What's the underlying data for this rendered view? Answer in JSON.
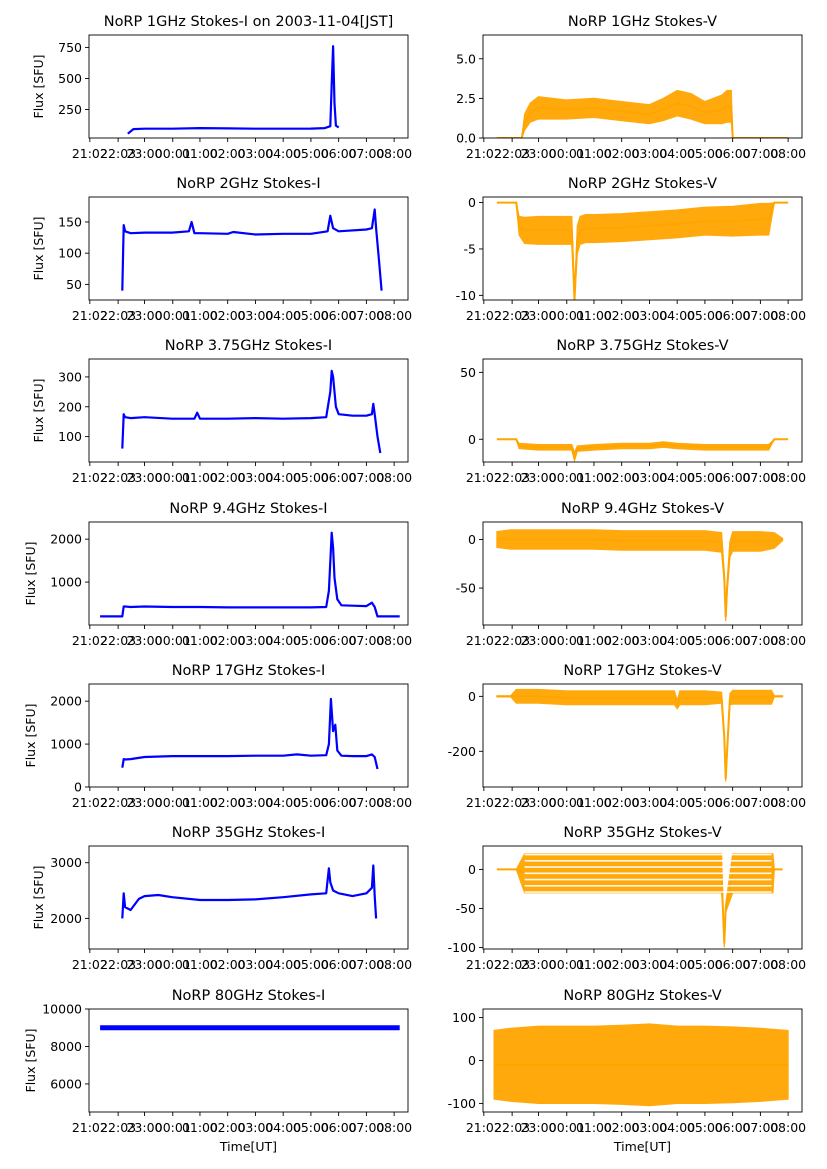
{
  "figure": {
    "xlabel": "Time[UT]",
    "ylabel": "Flux [SFU]",
    "x_tick_labels": [
      "21:02",
      "22:03",
      "23:00",
      "00:01",
      "01:00",
      "02:00",
      "03:00",
      "04:00",
      "05:00",
      "06:00",
      "07:00",
      "08:00"
    ],
    "colors": {
      "stokes_i": "#0000ff",
      "stokes_v": "#ffa500"
    }
  },
  "chart_data": [
    {
      "type": "line",
      "title": "NoRP 1GHz Stokes-I on 2003-11-04[JST]",
      "ylabel": "Flux [SFU]",
      "xlabel": "",
      "ylim": [
        20,
        850
      ],
      "yticks": [
        250,
        500,
        750
      ],
      "color": "#0000ff",
      "xlim": [
        21.0,
        32.5
      ],
      "series": [
        {
          "name": "Stokes-I",
          "x": [
            22.4,
            22.6,
            23.0,
            24.0,
            25.0,
            26.0,
            27.0,
            28.0,
            29.0,
            29.5,
            29.7,
            29.75,
            29.8,
            29.85,
            29.9,
            30.0
          ],
          "y": [
            55,
            92,
            95,
            95,
            100,
            97,
            95,
            95,
            96,
            100,
            115,
            450,
            760,
            300,
            120,
            105
          ]
        }
      ]
    },
    {
      "type": "line",
      "title": "NoRP 1GHz Stokes-V",
      "ylabel": "",
      "xlabel": "",
      "ylim": [
        0,
        6.5
      ],
      "yticks": [
        0.0,
        2.5,
        5.0
      ],
      "tick_format": "0.0",
      "color": "#ffa500",
      "band": true,
      "xlim": [
        21.0,
        32.5
      ],
      "series": [
        {
          "name": "Stokes-V",
          "x": [
            21.5,
            22.4,
            22.5,
            22.7,
            23.0,
            24.0,
            25.0,
            26.0,
            27.0,
            27.5,
            28.0,
            28.5,
            29.0,
            29.3,
            29.6,
            29.8,
            29.95,
            30.0,
            30.5,
            31.0,
            32.0
          ],
          "y": [
            0,
            0,
            1.0,
            1.6,
            1.9,
            1.8,
            1.9,
            1.7,
            1.5,
            1.8,
            2.2,
            2.0,
            1.6,
            1.7,
            1.8,
            2.0,
            2.0,
            0,
            0,
            0,
            0
          ],
          "spread": [
            0,
            0,
            0.5,
            0.6,
            0.7,
            0.6,
            0.6,
            0.6,
            0.6,
            0.7,
            0.8,
            0.8,
            0.7,
            0.8,
            0.9,
            1.0,
            1.0,
            0,
            0,
            0,
            0
          ]
        }
      ]
    },
    {
      "type": "line",
      "title": "NoRP 2GHz Stokes-I",
      "ylabel": "Flux [SFU]",
      "xlabel": "",
      "ylim": [
        25,
        190
      ],
      "yticks": [
        50,
        100,
        150
      ],
      "color": "#0000ff",
      "xlim": [
        21.0,
        32.5
      ],
      "series": [
        {
          "name": "Stokes-I",
          "x": [
            22.2,
            22.25,
            22.3,
            22.5,
            23.0,
            24.0,
            24.6,
            24.7,
            24.8,
            25.0,
            26.0,
            26.2,
            27.0,
            28.0,
            29.0,
            29.6,
            29.7,
            29.8,
            30.0,
            31.0,
            31.2,
            31.3,
            31.35,
            31.45,
            31.55
          ],
          "y": [
            40,
            145,
            135,
            132,
            133,
            133,
            135,
            150,
            132,
            132,
            131,
            134,
            130,
            131,
            131,
            135,
            160,
            140,
            135,
            138,
            140,
            170,
            140,
            90,
            40
          ]
        }
      ]
    },
    {
      "type": "line",
      "title": "NoRP 2GHz Stokes-V",
      "ylabel": "",
      "xlabel": "",
      "ylim": [
        -10.5,
        0.6
      ],
      "yticks": [
        -10,
        -5,
        0
      ],
      "color": "#ffa500",
      "band": true,
      "xlim": [
        21.0,
        32.5
      ],
      "series": [
        {
          "name": "Stokes-V",
          "x": [
            21.5,
            22.2,
            22.3,
            22.5,
            23.0,
            24.0,
            24.2,
            24.3,
            24.4,
            24.5,
            24.7,
            25.0,
            26.0,
            27.0,
            28.0,
            29.0,
            30.0,
            31.0,
            31.3,
            31.5,
            32.0
          ],
          "y": [
            0,
            0,
            -2.5,
            -3.0,
            -3.0,
            -3.0,
            -3.0,
            -10.5,
            -4.0,
            -3.0,
            -2.8,
            -2.8,
            -2.7,
            -2.5,
            -2.3,
            -2.0,
            -2.0,
            -1.8,
            -1.8,
            0,
            0
          ],
          "spread": [
            0,
            0,
            1.0,
            1.4,
            1.5,
            1.5,
            1.5,
            0.3,
            1.5,
            1.5,
            1.5,
            1.5,
            1.5,
            1.5,
            1.5,
            1.5,
            1.6,
            1.7,
            1.7,
            0,
            0
          ]
        }
      ]
    },
    {
      "type": "line",
      "title": "NoRP 3.75GHz Stokes-I",
      "ylabel": "Flux [SFU]",
      "xlabel": "",
      "ylim": [
        15,
        360
      ],
      "yticks": [
        100,
        200,
        300
      ],
      "color": "#0000ff",
      "xlim": [
        21.0,
        32.5
      ],
      "series": [
        {
          "name": "Stokes-I",
          "x": [
            22.2,
            22.25,
            22.3,
            22.5,
            23.0,
            24.0,
            24.8,
            24.9,
            25.0,
            26.0,
            27.0,
            28.0,
            29.0,
            29.55,
            29.7,
            29.75,
            29.8,
            29.9,
            30.0,
            30.5,
            31.0,
            31.2,
            31.25,
            31.3,
            31.4,
            31.5
          ],
          "y": [
            60,
            175,
            165,
            162,
            165,
            160,
            160,
            180,
            160,
            160,
            162,
            160,
            162,
            165,
            250,
            320,
            300,
            200,
            175,
            170,
            170,
            175,
            210,
            175,
            100,
            45
          ]
        }
      ]
    },
    {
      "type": "line",
      "title": "NoRP 3.75GHz Stokes-V",
      "ylabel": "",
      "xlabel": "",
      "ylim": [
        -17,
        60
      ],
      "yticks": [
        0,
        50
      ],
      "color": "#ffa500",
      "band": true,
      "xlim": [
        21.0,
        32.5
      ],
      "series": [
        {
          "name": "Stokes-V",
          "x": [
            21.5,
            22.2,
            22.3,
            23.0,
            24.0,
            24.2,
            24.3,
            24.4,
            25.0,
            26.0,
            27.0,
            27.5,
            28.0,
            29.0,
            30.0,
            31.0,
            31.3,
            31.5,
            32.0
          ],
          "y": [
            0,
            0,
            -5,
            -6,
            -6,
            -6,
            -13,
            -7,
            -6,
            -5,
            -5,
            -4,
            -5,
            -6,
            -6,
            -6,
            -6,
            0,
            0
          ],
          "spread": [
            0,
            0,
            2,
            2,
            2,
            2,
            3,
            2,
            2,
            2,
            2,
            2,
            2,
            2,
            2,
            2,
            2,
            0,
            0
          ]
        }
      ]
    },
    {
      "type": "line",
      "title": "NoRP 9.4GHz Stokes-I",
      "ylabel": "Flux [SFU]",
      "xlabel": "",
      "ylim": [
        0,
        2400
      ],
      "yticks": [
        1000,
        2000
      ],
      "color": "#0000ff",
      "xlim": [
        21.0,
        32.5
      ],
      "series": [
        {
          "name": "Stokes-I",
          "x": [
            21.4,
            22.2,
            22.25,
            22.3,
            22.5,
            23.0,
            24.0,
            25.0,
            26.0,
            27.0,
            28.0,
            29.0,
            29.55,
            29.65,
            29.75,
            29.8,
            29.85,
            29.95,
            30.1,
            30.5,
            31.0,
            31.2,
            31.3,
            31.4,
            31.5,
            32.2
          ],
          "y": [
            200,
            200,
            430,
            430,
            420,
            430,
            420,
            420,
            410,
            410,
            410,
            410,
            420,
            800,
            2150,
            1800,
            1100,
            600,
            460,
            450,
            440,
            520,
            420,
            200,
            200,
            200
          ]
        }
      ]
    },
    {
      "type": "line",
      "title": "NoRP 9.4GHz Stokes-V",
      "ylabel": "",
      "xlabel": "",
      "ylim": [
        -88,
        18
      ],
      "yticks": [
        -50,
        0
      ],
      "color": "#ffa500",
      "band": true,
      "xlim": [
        21.0,
        32.5
      ],
      "series": [
        {
          "name": "Stokes-V",
          "x": [
            21.5,
            22.0,
            23.0,
            24.0,
            25.0,
            26.0,
            27.0,
            28.0,
            29.0,
            29.6,
            29.7,
            29.75,
            29.8,
            29.9,
            30.0,
            31.0,
            31.5,
            31.8
          ],
          "y": [
            0,
            0,
            0,
            0,
            0,
            -1,
            -1,
            -1,
            -1,
            -3,
            -40,
            -80,
            -50,
            -10,
            -2,
            -2,
            -1,
            0
          ],
          "spread": [
            8,
            10,
            10,
            10,
            10,
            10,
            10,
            10,
            10,
            10,
            4,
            4,
            4,
            8,
            10,
            10,
            8,
            1
          ]
        }
      ]
    },
    {
      "type": "line",
      "title": "NoRP 17GHz Stokes-I",
      "ylabel": "Flux [SFU]",
      "xlabel": "",
      "ylim": [
        0,
        2400
      ],
      "yticks": [
        0,
        1000,
        2000
      ],
      "color": "#0000ff",
      "xlim": [
        21.0,
        32.5
      ],
      "series": [
        {
          "name": "Stokes-I",
          "x": [
            22.2,
            22.25,
            22.3,
            22.5,
            23.0,
            24.0,
            25.0,
            26.0,
            27.0,
            28.0,
            28.5,
            29.0,
            29.55,
            29.65,
            29.72,
            29.8,
            29.88,
            29.95,
            30.1,
            30.5,
            31.0,
            31.2,
            31.3,
            31.4
          ],
          "y": [
            450,
            650,
            640,
            650,
            700,
            720,
            720,
            720,
            730,
            730,
            760,
            730,
            740,
            1000,
            2050,
            1300,
            1450,
            850,
            730,
            720,
            720,
            760,
            700,
            420
          ]
        }
      ]
    },
    {
      "type": "line",
      "title": "NoRP 17GHz Stokes-V",
      "ylabel": "",
      "xlabel": "",
      "ylim": [
        -330,
        45
      ],
      "yticks": [
        -200,
        0
      ],
      "color": "#ffa500",
      "band": true,
      "xlim": [
        21.0,
        32.5
      ],
      "series": [
        {
          "name": "Stokes-V",
          "x": [
            21.5,
            22.0,
            22.2,
            23.0,
            24.0,
            25.0,
            26.0,
            27.0,
            27.9,
            28.0,
            28.1,
            29.0,
            29.6,
            29.7,
            29.75,
            29.8,
            29.9,
            30.0,
            31.0,
            31.4,
            31.5,
            31.8
          ],
          "y": [
            0,
            0,
            0,
            0,
            -5,
            -5,
            -5,
            -5,
            -5,
            -30,
            -5,
            -5,
            -5,
            -150,
            -300,
            -200,
            -10,
            -3,
            -3,
            -3,
            0,
            0
          ],
          "spread": [
            2,
            2,
            25,
            25,
            25,
            25,
            25,
            25,
            25,
            15,
            25,
            25,
            20,
            10,
            10,
            10,
            20,
            25,
            25,
            25,
            2,
            2
          ]
        }
      ]
    },
    {
      "type": "line",
      "title": "NoRP 35GHz Stokes-I",
      "ylabel": "Flux [SFU]",
      "xlabel": "",
      "ylim": [
        1450,
        3300
      ],
      "yticks": [
        2000,
        3000
      ],
      "color": "#0000ff",
      "xlim": [
        21.0,
        32.5
      ],
      "series": [
        {
          "name": "Stokes-I",
          "x": [
            22.2,
            22.25,
            22.3,
            22.5,
            22.8,
            23.0,
            23.5,
            24.0,
            25.0,
            26.0,
            27.0,
            28.0,
            29.0,
            29.55,
            29.65,
            29.7,
            29.8,
            30.0,
            30.5,
            31.0,
            31.2,
            31.25,
            31.3,
            31.35
          ],
          "y": [
            2000,
            2450,
            2200,
            2150,
            2350,
            2400,
            2420,
            2380,
            2330,
            2330,
            2340,
            2380,
            2430,
            2450,
            2900,
            2650,
            2500,
            2450,
            2400,
            2450,
            2550,
            2950,
            2400,
            2000
          ]
        }
      ]
    },
    {
      "type": "scatter",
      "title": "NoRP 35GHz Stokes-V",
      "ylabel": "",
      "xlabel": "",
      "ylim": [
        -102,
        30
      ],
      "yticks": [
        -100,
        -50,
        0
      ],
      "color": "#ffa500",
      "band": true,
      "stripes": true,
      "xlim": [
        21.0,
        32.5
      ],
      "series": [
        {
          "name": "Stokes-V",
          "x": [
            21.5,
            22.2,
            22.5,
            23.0,
            24.0,
            25.0,
            26.0,
            27.0,
            28.0,
            29.0,
            29.6,
            29.65,
            29.7,
            29.75,
            30.0,
            31.0,
            31.45,
            31.5,
            31.8
          ],
          "y": [
            0,
            0,
            -5,
            -5,
            -5,
            -5,
            -5,
            -5,
            -5,
            -5,
            -5,
            -50,
            -95,
            -50,
            -5,
            -5,
            -5,
            0,
            0
          ],
          "spread": [
            0,
            0,
            25,
            25,
            25,
            25,
            25,
            25,
            25,
            25,
            25,
            5,
            5,
            5,
            25,
            25,
            25,
            0,
            0
          ]
        }
      ]
    },
    {
      "type": "line",
      "title": "NoRP 80GHz Stokes-I",
      "ylabel": "Flux [SFU]",
      "xlabel": "Time[UT]",
      "ylim": [
        4500,
        10000
      ],
      "yticks": [
        6000,
        8000,
        10000
      ],
      "color": "#0000ff",
      "xlim": [
        21.0,
        32.5
      ],
      "series": [
        {
          "name": "Stokes-I",
          "x": [
            21.4,
            22.0,
            23.0,
            24.0,
            25.0,
            26.0,
            27.0,
            28.0,
            29.0,
            30.0,
            31.0,
            32.0,
            32.2
          ],
          "y": [
            9000,
            9000,
            9000,
            9000,
            9000,
            9000,
            9000,
            9000,
            9000,
            9000,
            9000,
            9000,
            9000
          ]
        }
      ]
    },
    {
      "type": "scatter",
      "title": "NoRP 80GHz Stokes-V",
      "ylabel": "",
      "xlabel": "Time[UT]",
      "ylim": [
        -120,
        120
      ],
      "yticks": [
        -100,
        0,
        100
      ],
      "color": "#ffa500",
      "band": true,
      "xlim": [
        21.0,
        32.5
      ],
      "series": [
        {
          "name": "Stokes-V",
          "x": [
            21.4,
            22.0,
            23.0,
            24.0,
            25.0,
            26.0,
            27.0,
            28.0,
            29.0,
            30.0,
            31.0,
            32.0
          ],
          "y": [
            -10,
            -10,
            -10,
            -10,
            -10,
            -10,
            -10,
            -10,
            -10,
            -10,
            -10,
            -10
          ],
          "spread": [
            80,
            85,
            90,
            90,
            90,
            92,
            95,
            90,
            90,
            88,
            85,
            80
          ]
        }
      ]
    }
  ]
}
